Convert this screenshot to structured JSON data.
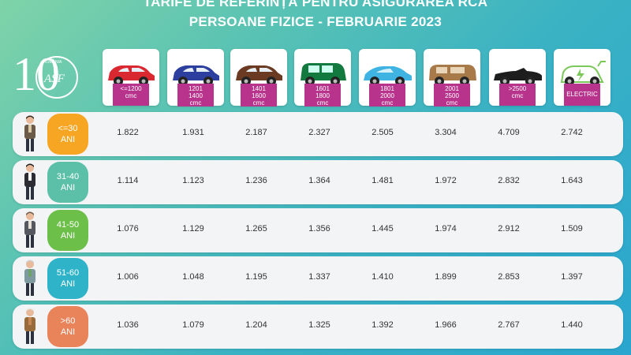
{
  "header": {
    "title_line1": "TARIFE DE REFERINȚĂ PENTRU ASIGURAREA RCA",
    "title_line2": "PERSOANE FIZICE - FEBRUARIE 2023"
  },
  "logo": {
    "number": "10",
    "initials": "ASF",
    "caption": "ROMÂNIA"
  },
  "columns": [
    {
      "lines": [
        "<=1200",
        "cmc"
      ],
      "car_color": "#d9282f",
      "icon": "small-hatchback-icon"
    },
    {
      "lines": [
        "1201",
        "1400",
        "cmc"
      ],
      "car_color": "#2d3f9e",
      "icon": "hatchback-icon"
    },
    {
      "lines": [
        "1401",
        "1600",
        "cmc"
      ],
      "car_color": "#6b3a22",
      "icon": "sedan-icon"
    },
    {
      "lines": [
        "1601",
        "1800",
        "cmc"
      ],
      "car_color": "#127a3e",
      "icon": "minivan-icon"
    },
    {
      "lines": [
        "1801",
        "2000",
        "cmc"
      ],
      "car_color": "#3fb4e3",
      "icon": "coupe-icon"
    },
    {
      "lines": [
        "2001",
        "2500",
        "cmc"
      ],
      "car_color": "#a87a4a",
      "icon": "suv-icon"
    },
    {
      "lines": [
        ">2500",
        "cmc"
      ],
      "car_color": "#1d1d1d",
      "icon": "convertible-icon"
    },
    {
      "lines": [
        "ELECTRIC"
      ],
      "car_color": "#7cc85a",
      "icon": "electric-car-icon"
    }
  ],
  "rows": [
    {
      "age_line1": "<=30",
      "age_line2": "ANI",
      "badge_color": "#f6a623",
      "values": [
        "1.822",
        "1.931",
        "2.187",
        "2.327",
        "2.505",
        "3.304",
        "4.709",
        "2.742"
      ]
    },
    {
      "age_line1": "31-40",
      "age_line2": "ANI",
      "badge_color": "#5cc0a8",
      "values": [
        "1.114",
        "1.123",
        "1.236",
        "1.364",
        "1.481",
        "1.972",
        "2.832",
        "1.643"
      ]
    },
    {
      "age_line1": "41-50",
      "age_line2": "ANI",
      "badge_color": "#6cc04a",
      "values": [
        "1.076",
        "1.129",
        "1.265",
        "1.356",
        "1.445",
        "1.974",
        "2.912",
        "1.509"
      ]
    },
    {
      "age_line1": "51-60",
      "age_line2": "ANI",
      "badge_color": "#2fb3c9",
      "values": [
        "1.006",
        "1.048",
        "1.195",
        "1.337",
        "1.410",
        "1.899",
        "2.853",
        "1.397"
      ]
    },
    {
      "age_line1": ">60",
      "age_line2": "ANI",
      "badge_color": "#e8835a",
      "values": [
        "1.036",
        "1.079",
        "1.204",
        "1.325",
        "1.392",
        "1.966",
        "2.767",
        "1.440"
      ]
    }
  ]
}
